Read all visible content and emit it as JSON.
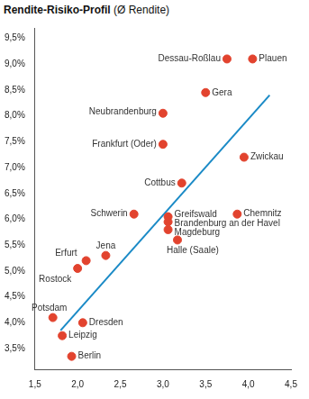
{
  "chart_data": {
    "type": "scatter",
    "title": "Rendite-Risiko-Profil",
    "subtitle": "(Ø Rendite)",
    "labels": [
      "Dessau-Roßlau",
      "Plauen",
      "Gera",
      "Neubrandenburg",
      "Frankfurt (Oder)",
      "Zwickau",
      "Cottbus",
      "Schwerin",
      "Greifswald",
      "Chemnitz",
      "Brandenburg an der Havel",
      "Magdeburg",
      "Halle (Saale)",
      "Jena",
      "Erfurt",
      "Rostock",
      "Potsdam",
      "Dresden",
      "Leipzig",
      "Berlin"
    ],
    "x": [
      3.75,
      4.05,
      3.5,
      3.0,
      3.0,
      3.95,
      3.22,
      2.66,
      3.06,
      3.87,
      3.06,
      3.06,
      3.17,
      2.33,
      2.1,
      2.0,
      1.71,
      2.06,
      1.82,
      1.93
    ],
    "values": [
      9.1,
      9.1,
      8.45,
      8.05,
      7.45,
      7.2,
      6.7,
      6.1,
      6.05,
      6.1,
      5.95,
      5.8,
      5.6,
      5.3,
      5.2,
      5.05,
      4.1,
      4.0,
      3.75,
      3.35
    ],
    "color": "#e2432e",
    "trend": {
      "type": "line",
      "x": [
        1.8,
        4.25
      ],
      "values": [
        3.85,
        8.4
      ],
      "color": "#1a8ac6"
    },
    "xlim": [
      1.5,
      4.5
    ],
    "xticks": [
      {
        "value": 1.5,
        "label": "1,5"
      },
      {
        "value": 2.0,
        "label": "2,0"
      },
      {
        "value": 2.5,
        "label": "2,5"
      },
      {
        "value": 3.0,
        "label": "3,0"
      },
      {
        "value": 3.5,
        "label": "3,5"
      },
      {
        "value": 4.0,
        "label": "4,0"
      },
      {
        "value": 4.5,
        "label": "4,5"
      }
    ],
    "ylim": [
      3.1,
      9.7
    ],
    "yticks": [
      {
        "value": 3.5,
        "label": "3,5%"
      },
      {
        "value": 4.0,
        "label": "4,0%"
      },
      {
        "value": 4.5,
        "label": "4,5%"
      },
      {
        "value": 5.0,
        "label": "5,0%"
      },
      {
        "value": 5.5,
        "label": "5,5%"
      },
      {
        "value": 6.0,
        "label": "6,0%"
      },
      {
        "value": 6.5,
        "label": "6,5%"
      },
      {
        "value": 7.0,
        "label": "7,0%"
      },
      {
        "value": 7.5,
        "label": "7,5%"
      },
      {
        "value": 8.0,
        "label": "8,0%"
      },
      {
        "value": 8.5,
        "label": "8,5%"
      },
      {
        "value": 9.0,
        "label": "9,0%"
      },
      {
        "value": 9.5,
        "label": "9,5%"
      }
    ],
    "grid": false
  }
}
